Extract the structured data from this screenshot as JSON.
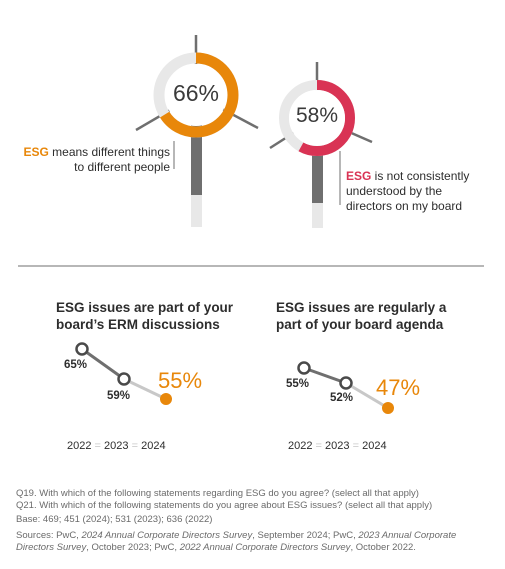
{
  "turbines": [
    {
      "value_text": "66%",
      "value": 66,
      "keyword": "ESG",
      "caption_line1": " means different things",
      "caption_line2": "to different people",
      "color": "#e8870a"
    },
    {
      "value_text": "58%",
      "value": 58,
      "keyword": "ESG",
      "caption_line1": " is not consistently",
      "caption_line2": "understood by the",
      "caption_line3": "directors on my board",
      "color": "#d93354"
    }
  ],
  "colors": {
    "track": "#e8e8e8",
    "tower": "#6f6f6f",
    "grey_point": "#c8c8c8",
    "accent": "#e8870a"
  },
  "chart_data": [
    {
      "type": "line",
      "title": "ESG issues are part of your board’s ERM discussions",
      "x": [
        "2022",
        "2023",
        "2024"
      ],
      "values": [
        65,
        59,
        55
      ],
      "labels": [
        "65%",
        "59%",
        "55%"
      ]
    },
    {
      "type": "line",
      "title": "ESG issues are regularly a part of your board agenda",
      "x": [
        "2022",
        "2023",
        "2024"
      ],
      "values": [
        55,
        52,
        47
      ],
      "labels": [
        "55%",
        "52%",
        "47%"
      ]
    }
  ],
  "line_titles": [
    {
      "l1": "ESG issues are part of your",
      "l2": "board’s ERM discussions"
    },
    {
      "l1": "ESG issues are regularly a",
      "l2": "part of your board agenda"
    }
  ],
  "year_sep": "=",
  "footnotes": {
    "q19": "Q19. With which of the following statements regarding ESG do you agree? (select all that apply)",
    "q21": "Q21. With which of the following statements do you agree about ESG issues? (select all that apply)",
    "base": "Base: 469; 451 (2024); 531 (2023); 636 (2022)",
    "src_a": "Sources: PwC, ",
    "src_b": "2024 Annual Corporate Directors Survey",
    "src_c": ", September 2024; PwC, ",
    "src_d": "2023 Annual Corporate",
    "src_e": "Directors Survey",
    "src_f": ", October 2023; PwC, ",
    "src_g": "2022 Annual Corporate Directors Survey",
    "src_h": ", October 2022."
  }
}
